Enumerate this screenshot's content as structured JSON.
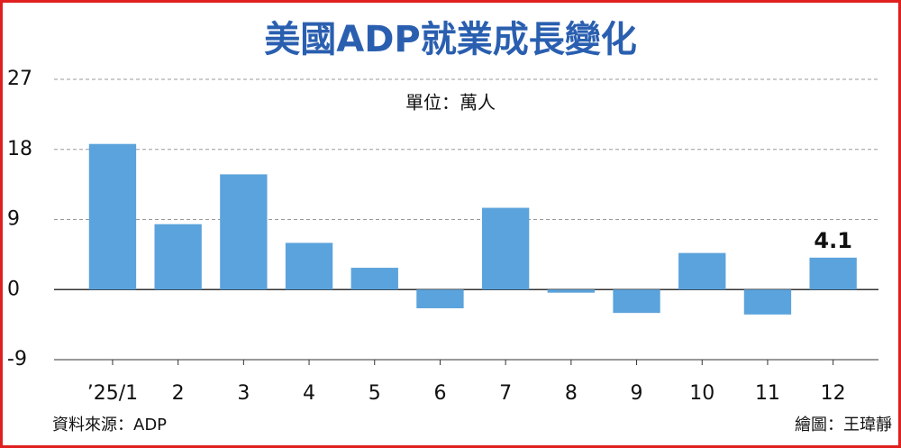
{
  "chart_data": {
    "type": "bar",
    "title": "美國ADP就業成長變化",
    "subtitle": "單位：萬人",
    "categories": [
      "’25/1",
      "2",
      "3",
      "4",
      "5",
      "6",
      "7",
      "8",
      "9",
      "10",
      "11",
      "12"
    ],
    "values": [
      18.7,
      8.4,
      14.8,
      6.0,
      2.8,
      -2.4,
      10.5,
      -0.4,
      -3.0,
      4.7,
      -3.2,
      4.1
    ],
    "value_labels": [
      null,
      null,
      null,
      null,
      null,
      null,
      null,
      null,
      null,
      null,
      null,
      "4.1"
    ],
    "color": "#5ba3dc",
    "ylim": [
      -9,
      27
    ],
    "yticks": [
      -9,
      0,
      9,
      18,
      27
    ],
    "grid": true,
    "source": "資料來源：ADP",
    "credit": "繪圖：王瑋靜"
  }
}
